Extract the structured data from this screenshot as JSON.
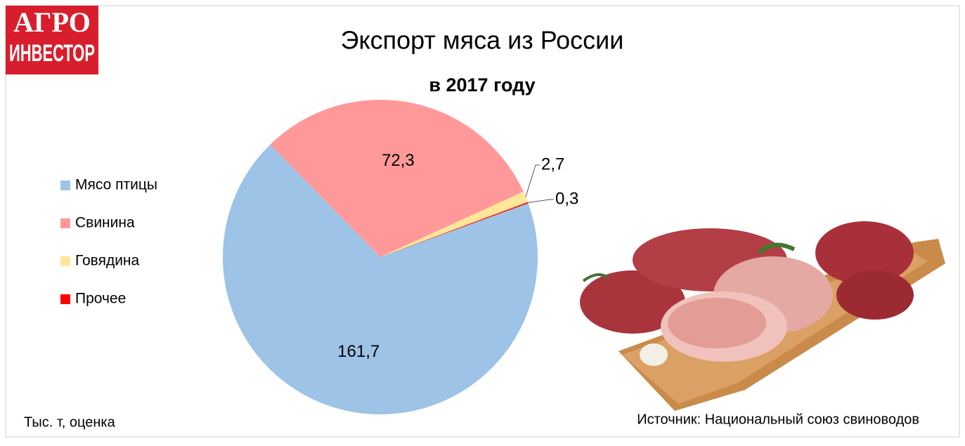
{
  "logo": {
    "line1": "АГРО",
    "line2": "ИНВЕСТОР"
  },
  "chart_data": {
    "type": "pie",
    "title": "Экспорт мяса из России",
    "subtitle": "в 2017 году",
    "categories": [
      "Мясо птицы",
      "Свинина",
      "Говядина",
      "Прочее"
    ],
    "values": [
      161.7,
      72.3,
      2.7,
      0.3
    ],
    "value_labels": [
      "161,7",
      "72,3",
      "2,7",
      "0,3"
    ],
    "colors": [
      "#9dc3e6",
      "#ff9999",
      "#ffe699",
      "#ff0000"
    ],
    "legend": "left",
    "note": "Тыс. т, оценка",
    "source": "Источник: Национальный союз свиноводов"
  }
}
